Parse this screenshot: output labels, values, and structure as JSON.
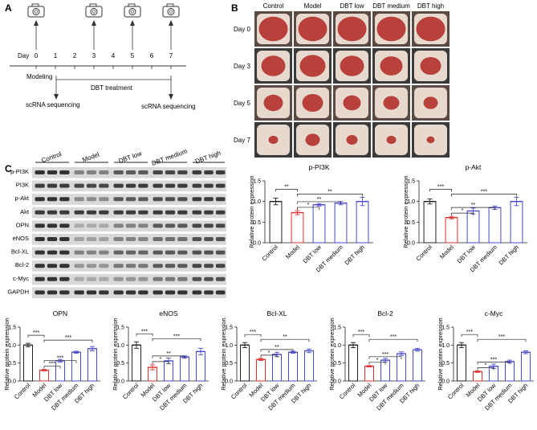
{
  "panels": {
    "a": "A",
    "b": "B",
    "c": "C"
  },
  "timeline": {
    "day_label": "Day",
    "days": [
      "0",
      "1",
      "2",
      "3",
      "4",
      "5",
      "6",
      "7"
    ],
    "camera_days": [
      "0",
      "3",
      "5",
      "7"
    ],
    "modeling_label": "Modeling",
    "treatment_label": "DBT treatment",
    "scrna_1": "scRNA sequencing",
    "scrna_2": "scRNA sequencing",
    "camera_icon": "camera-icon"
  },
  "photo_grid": {
    "columns": [
      "Control",
      "Model",
      "DBT low",
      "DBT medium",
      "DBT high"
    ],
    "rows": [
      "Day 0",
      "Day 3",
      "Day 5",
      "Day 7"
    ],
    "wound_color": "#b8413b",
    "skin_color": "#e8d9cf"
  },
  "blot": {
    "groups": [
      "Control",
      "Model",
      "DBT low",
      "DBT medium",
      "DBT high"
    ],
    "proteins": [
      "p-PI3K",
      "PI3K",
      "p-Akt",
      "Akt",
      "OPN",
      "eNOS",
      "Bcl-XL",
      "Bcl-2",
      "c-Myc",
      "GAPDH"
    ]
  },
  "colors": {
    "control": "#222222",
    "model": "#e03030",
    "dbt": "#4a4ad0"
  },
  "chart_data": [
    {
      "type": "bar",
      "title": "p-PI3K",
      "ylabel": "Relative protein expression",
      "ylim": [
        0,
        1.5
      ],
      "yticks": [
        "0.0",
        "0.5",
        "1.0",
        "1.5"
      ],
      "categories": [
        "Control",
        "Model",
        "DBT low",
        "DBT medium",
        "DBT high"
      ],
      "values": [
        1.0,
        0.73,
        0.92,
        0.96,
        1.0
      ],
      "errors": [
        0.08,
        0.05,
        0.03,
        0.04,
        0.1
      ],
      "sig": [
        {
          "from": 0,
          "to": 1,
          "label": "**"
        },
        {
          "from": 1,
          "to": 2,
          "label": "*"
        },
        {
          "from": 1,
          "to": 3,
          "label": "**"
        },
        {
          "from": 1,
          "to": 4,
          "label": "**"
        }
      ]
    },
    {
      "type": "bar",
      "title": "p-Akt",
      "ylabel": "Relative protein expression",
      "ylim": [
        0,
        1.5
      ],
      "yticks": [
        "0.0",
        "0.5",
        "1.0",
        "1.5"
      ],
      "categories": [
        "Control",
        "Model",
        "DBT low",
        "DBT medium",
        "DBT high"
      ],
      "values": [
        1.0,
        0.61,
        0.77,
        0.85,
        1.0
      ],
      "errors": [
        0.06,
        0.03,
        0.07,
        0.04,
        0.1
      ],
      "sig": [
        {
          "from": 0,
          "to": 1,
          "label": "***"
        },
        {
          "from": 1,
          "to": 2,
          "label": "*"
        },
        {
          "from": 1,
          "to": 3,
          "label": "**"
        },
        {
          "from": 1,
          "to": 4,
          "label": "***"
        }
      ]
    },
    {
      "type": "bar",
      "title": "OPN",
      "ylabel": "Relative protein expression",
      "ylim": [
        0,
        1.5
      ],
      "yticks": [
        "0.0",
        "0.5",
        "1.0",
        "1.5"
      ],
      "categories": [
        "Control",
        "Model",
        "DBT low",
        "DBT medium",
        "DBT high"
      ],
      "values": [
        1.0,
        0.3,
        0.56,
        0.8,
        0.9
      ],
      "errors": [
        0.05,
        0.02,
        0.04,
        0.03,
        0.06
      ],
      "sig": [
        {
          "from": 0,
          "to": 1,
          "label": "***"
        },
        {
          "from": 1,
          "to": 2,
          "label": "***"
        },
        {
          "from": 1,
          "to": 3,
          "label": "***"
        },
        {
          "from": 1,
          "to": 4,
          "label": "***"
        }
      ]
    },
    {
      "type": "bar",
      "title": "eNOS",
      "ylabel": "Relative protein expression",
      "ylim": [
        0,
        1.5
      ],
      "yticks": [
        "0.0",
        "0.5",
        "1.0",
        "1.5"
      ],
      "categories": [
        "Control",
        "Model",
        "DBT low",
        "DBT medium",
        "DBT high"
      ],
      "values": [
        1.0,
        0.38,
        0.56,
        0.67,
        0.82
      ],
      "errors": [
        0.09,
        0.07,
        0.08,
        0.03,
        0.09
      ],
      "sig": [
        {
          "from": 0,
          "to": 1,
          "label": "***"
        },
        {
          "from": 1,
          "to": 2,
          "label": "*"
        },
        {
          "from": 1,
          "to": 3,
          "label": "**"
        },
        {
          "from": 1,
          "to": 4,
          "label": "***"
        }
      ]
    },
    {
      "type": "bar",
      "title": "Bcl-XL",
      "ylabel": "Relative protein expression",
      "ylim": [
        0,
        1.5
      ],
      "yticks": [
        "0.0",
        "0.5",
        "1.0",
        "1.5"
      ],
      "categories": [
        "Control",
        "Model",
        "DBT low",
        "DBT medium",
        "DBT high"
      ],
      "values": [
        1.0,
        0.6,
        0.74,
        0.8,
        0.84
      ],
      "errors": [
        0.07,
        0.03,
        0.06,
        0.03,
        0.05
      ],
      "sig": [
        {
          "from": 0,
          "to": 1,
          "label": "***"
        },
        {
          "from": 1,
          "to": 2,
          "label": "*"
        },
        {
          "from": 1,
          "to": 3,
          "label": "**"
        },
        {
          "from": 1,
          "to": 4,
          "label": "**"
        }
      ]
    },
    {
      "type": "bar",
      "title": "Bcl-2",
      "ylabel": "Relative protein expression",
      "ylim": [
        0,
        1.5
      ],
      "yticks": [
        "0.0",
        "0.5",
        "1.0",
        "1.5"
      ],
      "categories": [
        "Control",
        "Model",
        "DBT low",
        "DBT medium",
        "DBT high"
      ],
      "values": [
        1.0,
        0.41,
        0.58,
        0.76,
        0.87
      ],
      "errors": [
        0.07,
        0.02,
        0.05,
        0.05,
        0.04
      ],
      "sig": [
        {
          "from": 0,
          "to": 1,
          "label": "***"
        },
        {
          "from": 1,
          "to": 2,
          "label": "*"
        },
        {
          "from": 1,
          "to": 3,
          "label": "***"
        },
        {
          "from": 1,
          "to": 4,
          "label": "***"
        }
      ]
    },
    {
      "type": "bar",
      "title": "c-Myc",
      "ylabel": "Relative protein expression",
      "ylim": [
        0,
        1.5
      ],
      "yticks": [
        "0.0",
        "0.5",
        "1.0",
        "1.5"
      ],
      "categories": [
        "Control",
        "Model",
        "DBT low",
        "DBT medium",
        "DBT high"
      ],
      "values": [
        1.0,
        0.26,
        0.41,
        0.54,
        0.8
      ],
      "errors": [
        0.07,
        0.02,
        0.06,
        0.04,
        0.04
      ],
      "sig": [
        {
          "from": 0,
          "to": 1,
          "label": "***"
        },
        {
          "from": 1,
          "to": 2,
          "label": "*"
        },
        {
          "from": 1,
          "to": 3,
          "label": "***"
        },
        {
          "from": 1,
          "to": 4,
          "label": "***"
        }
      ]
    }
  ]
}
